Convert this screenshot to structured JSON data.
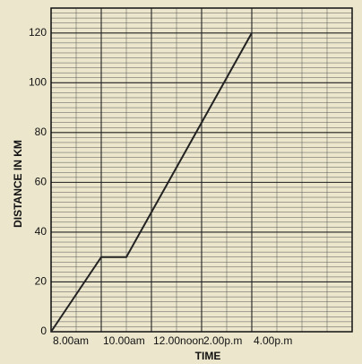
{
  "chart_data": {
    "type": "line",
    "x_label": "TIME",
    "y_label": "DISTANCE IN KM",
    "x": [
      8,
      10,
      11,
      16
    ],
    "series": [
      {
        "color": "#222222",
        "values": [
          0,
          30,
          30,
          120
        ]
      }
    ],
    "xlim": [
      8,
      20
    ],
    "xticks": [
      {
        "value": 8,
        "label": "8.00am"
      },
      {
        "value": 10,
        "label": "10.00am"
      },
      {
        "value": 12,
        "label": "12.00noon"
      },
      {
        "value": 14,
        "label": "2.00p.m"
      },
      {
        "value": 16,
        "label": "4.00p.m"
      }
    ],
    "ylim": [
      0,
      130
    ],
    "yticks": [
      0,
      20,
      40,
      60,
      80,
      100,
      120
    ],
    "grid": true
  }
}
